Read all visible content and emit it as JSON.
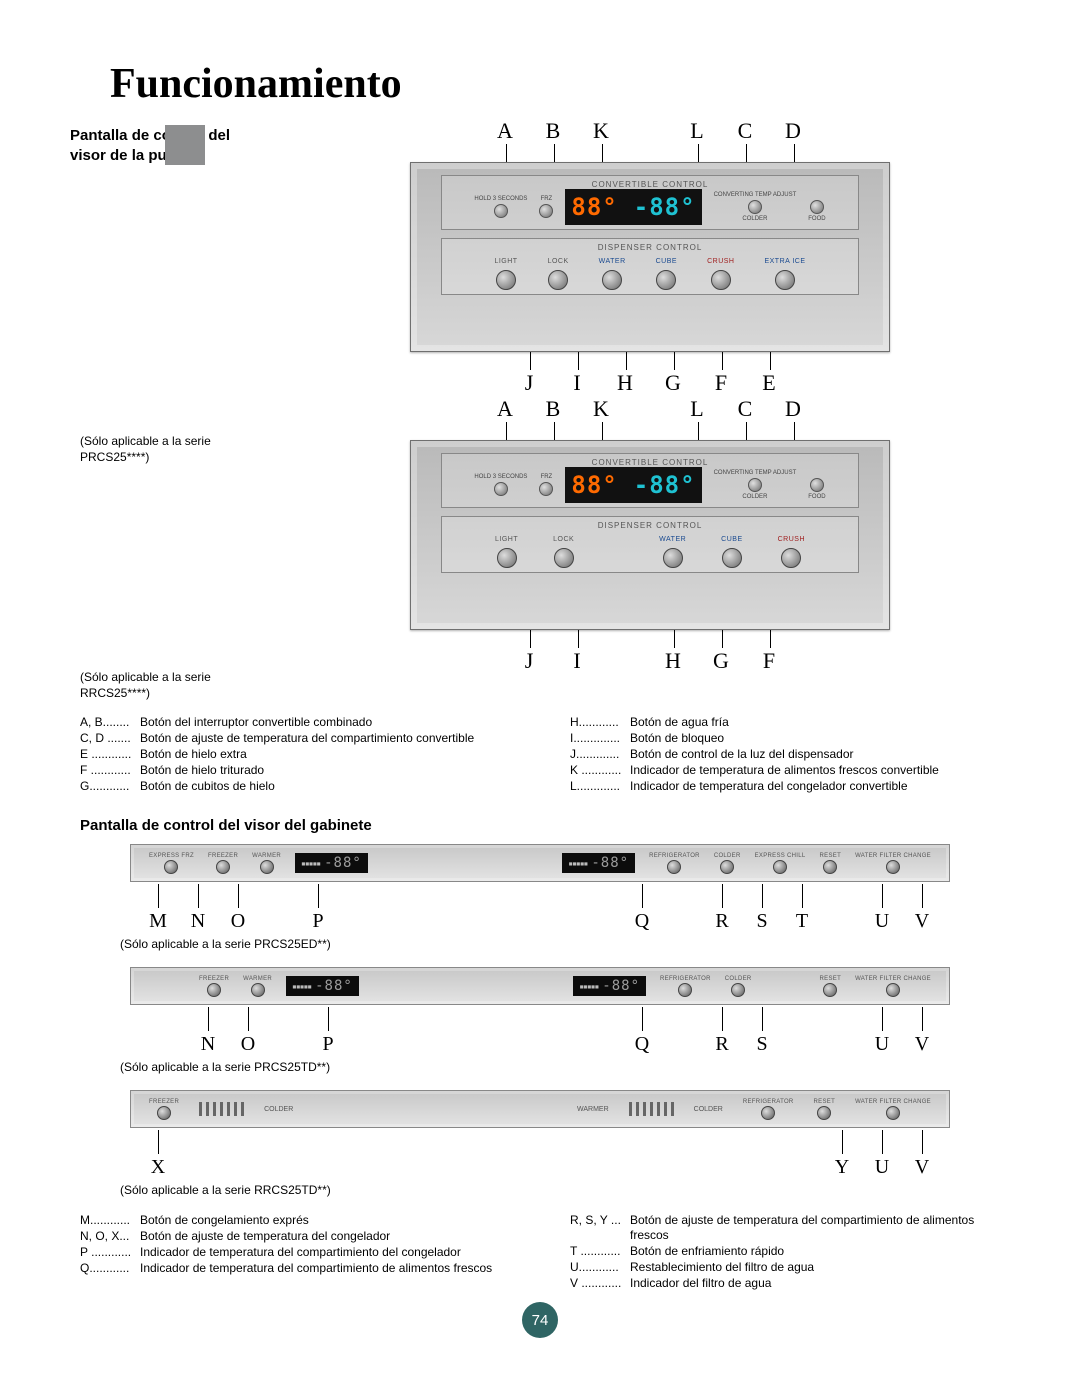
{
  "page_number": "74",
  "title": "Funcionamiento",
  "section1": {
    "heading": "Pantalla de control del visor de la puerta",
    "note_prcs": "(Sólo aplicable a la serie PRCS25****)",
    "note_rrcs": "(Sólo aplicable a la serie RRCS25****)"
  },
  "panel": {
    "convertible_label": "CONVERTIBLE CONTROL",
    "dispenser_label": "DISPENSER CONTROL",
    "side_left_top": "HOLD 3 SECONDS",
    "side_left_bot": "FRZ",
    "side_right_top": "CONVERTING TEMP ADJUST",
    "side_right_bot1": "COLDER",
    "side_right_bot2": "FOOD",
    "lcd_left": "88°",
    "lcd_right": "-88°",
    "buttons_prcs": [
      {
        "label": "LIGHT",
        "color": "grey"
      },
      {
        "label": "LOCK",
        "color": "grey"
      },
      {
        "label": "WATER",
        "color": "blue"
      },
      {
        "label": "CUBE",
        "color": "blue"
      },
      {
        "label": "CRUSH",
        "color": "red"
      },
      {
        "label": "EXTRA ICE",
        "color": "blue"
      }
    ],
    "buttons_rrcs": [
      {
        "label": "LIGHT",
        "color": "grey"
      },
      {
        "label": "LOCK",
        "color": "grey"
      },
      {
        "label": "WATER",
        "color": "blue"
      },
      {
        "label": "CUBE",
        "color": "blue"
      },
      {
        "label": "CRUSH",
        "color": "red"
      }
    ]
  },
  "callouts": {
    "top1": [
      "A",
      "B",
      "K",
      "",
      "L",
      "C",
      "D"
    ],
    "bot1": [
      "J",
      "I",
      "H",
      "G",
      "F",
      "E"
    ],
    "top2": [
      "A",
      "B",
      "K",
      "",
      "L",
      "C",
      "D"
    ],
    "bot2": [
      "J",
      "I",
      "",
      "H",
      "G",
      "F"
    ]
  },
  "legend1": {
    "left": [
      {
        "k": "A, B........",
        "v": "Botón del interruptor convertible combinado"
      },
      {
        "k": "C, D .......",
        "v": "Botón de ajuste de temperatura del compartimiento convertible"
      },
      {
        "k": "E ............",
        "v": "Botón de hielo extra"
      },
      {
        "k": "F ............",
        "v": "Botón de hielo triturado"
      },
      {
        "k": "G............",
        "v": "Botón de cubitos de hielo"
      }
    ],
    "right": [
      {
        "k": "H............",
        "v": "Botón de agua fría"
      },
      {
        "k": "I..............",
        "v": "Botón de bloqueo"
      },
      {
        "k": "J.............",
        "v": "Botón de control de la luz del dispensador"
      },
      {
        "k": "K ............",
        "v": "Indicador de temperatura de alimentos frescos convertible"
      },
      {
        "k": "L.............",
        "v": "Indicador de temperatura del congelador convertible"
      }
    ]
  },
  "section2": {
    "heading": "Pantalla de control del visor del gabinete",
    "note_ed": "(Sólo aplicable a la serie PRCS25ED**)",
    "note_td": "(Sólo aplicable a la serie PRCS25TD**)",
    "note_rr": "(Sólo aplicable a la serie RRCS25TD**)"
  },
  "hpanels": {
    "lcd": "-88°",
    "btn_express_frz": "EXPRESS FRZ",
    "btn_freezer": "FREEZER",
    "btn_refrigerator": "REFRIGERATOR",
    "btn_express_chill": "EXPRESS CHILL",
    "btn_reset": "RESET",
    "btn_filter": "WATER FILTER CHANGE",
    "btn_warmer": "WARMER",
    "btn_colder": "COLDER"
  },
  "hlabels": {
    "row1_left": [
      "M",
      "N",
      "O",
      "",
      "P"
    ],
    "row1_right": [
      "Q",
      "",
      "R",
      "S",
      "T",
      "",
      "U",
      "V"
    ],
    "row2_left": [
      "N",
      "O",
      "",
      "P"
    ],
    "row2_right": [
      "Q",
      "",
      "R",
      "S",
      "",
      "",
      "U",
      "V"
    ],
    "row3_left": [
      "X"
    ],
    "row3_right": [
      "Y",
      "U",
      "V"
    ]
  },
  "legend2": {
    "left": [
      {
        "k": "M............",
        "v": "Botón de congelamiento exprés"
      },
      {
        "k": "N, O, X...",
        "v": "Botón de ajuste de temperatura del congelador"
      },
      {
        "k": "P ............",
        "v": "Indicador de temperatura del compartimiento del congelador"
      },
      {
        "k": "Q............",
        "v": "Indicador de temperatura del compartimiento de alimentos frescos"
      }
    ],
    "right": [
      {
        "k": "R, S, Y ...",
        "v": "Botón de ajuste de temperatura del compartimiento de alimentos frescos"
      },
      {
        "k": "T ............",
        "v": "Botón de enfriamiento rápido"
      },
      {
        "k": "U............",
        "v": "Restablecimiento del filtro de agua"
      },
      {
        "k": "V ............",
        "v": "Indicador del filtro de agua"
      }
    ]
  },
  "colors": {
    "accent_orange": "#ff6a00",
    "accent_cyan": "#1fc2d2",
    "page_circle": "#2f6564"
  }
}
